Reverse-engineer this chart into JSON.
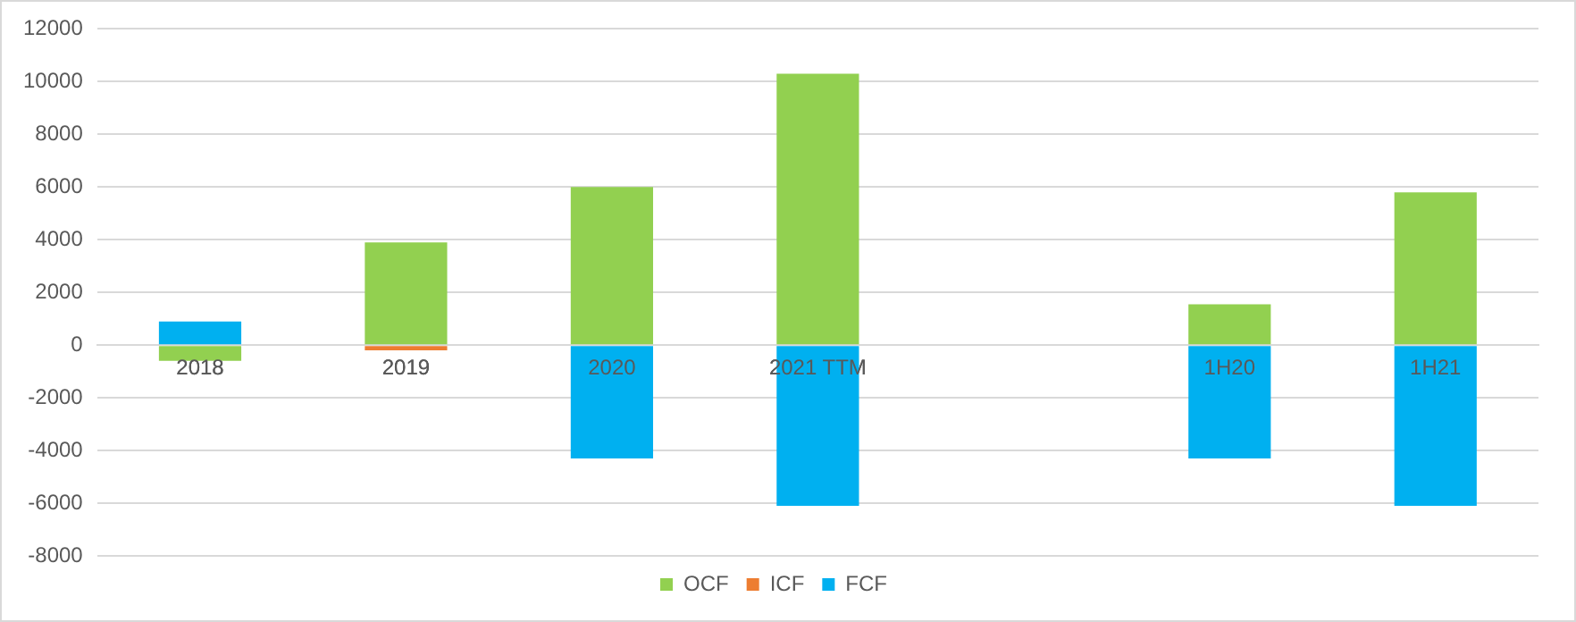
{
  "chart_data": {
    "type": "bar",
    "stacked": true,
    "categories": [
      "2018",
      "2019",
      "2020",
      "2021 TTM",
      null,
      "1H20",
      "1H21"
    ],
    "series": [
      {
        "name": "OCF",
        "color": "#92d050",
        "values": [
          -600,
          3900,
          6000,
          10300,
          null,
          1550,
          5800
        ]
      },
      {
        "name": "ICF",
        "color": "#ed7d31",
        "values": [
          null,
          -200,
          null,
          null,
          null,
          null,
          null
        ]
      },
      {
        "name": "FCF",
        "color": "#00b0f0",
        "values": [
          900,
          null,
          -4300,
          -6100,
          null,
          -4300,
          -6100
        ]
      }
    ],
    "ylim": [
      -8000,
      12000
    ],
    "yticks": [
      -8000,
      -6000,
      -4000,
      -2000,
      0,
      2000,
      4000,
      6000,
      8000,
      10000,
      12000
    ],
    "grid": "y",
    "legend": "bottom"
  }
}
